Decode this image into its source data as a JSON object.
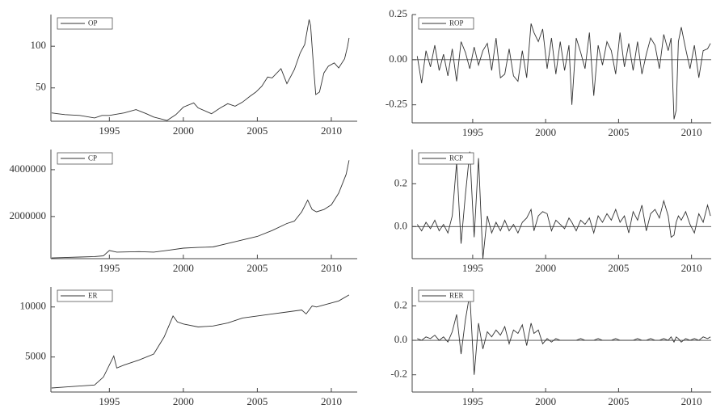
{
  "chart_data": [
    {
      "type": "line",
      "x": [
        1991.1,
        1991.5,
        1992,
        1993,
        1994,
        1994.5,
        1995,
        1996,
        1996.8,
        1997.5,
        1998,
        1998.9,
        1999.5,
        2000,
        2000.7,
        2001,
        2001.9,
        2002.5,
        2003,
        2003.5,
        2004,
        2004.5,
        2004.9,
        2005.3,
        2005.7,
        2006,
        2006.6,
        2007,
        2007.5,
        2007.9,
        2008.2,
        2008.5,
        2008.6,
        2008.8,
        2008.95,
        2009.2,
        2009.5,
        2009.8,
        2010.2,
        2010.5,
        2010.9,
        2011.1,
        2011.2
      ],
      "series": [
        {
          "name": "OP",
          "color": "#333333",
          "values": [
            20,
            19,
            18,
            17,
            14,
            17,
            17,
            20,
            24,
            19,
            15,
            11,
            18,
            27,
            32,
            26,
            19,
            26,
            31,
            28,
            33,
            40,
            45,
            52,
            63,
            62,
            73,
            55,
            72,
            92,
            102,
            132,
            125,
            75,
            42,
            45,
            68,
            76,
            80,
            74,
            85,
            100,
            110
          ]
        }
      ],
      "xlim": [
        1991.05,
        2011.75
      ],
      "xticks": [
        1995,
        2000,
        2005,
        2010
      ],
      "ylim": [
        10,
        138
      ],
      "yticks": [
        50,
        100
      ]
    },
    {
      "type": "line",
      "x": [
        1991.2,
        1991.5,
        1991.8,
        1992.1,
        1992.4,
        1992.7,
        1993,
        1993.3,
        1993.6,
        1993.9,
        1994.2,
        1994.5,
        1994.8,
        1995.1,
        1995.4,
        1995.7,
        1996,
        1996.3,
        1996.6,
        1996.9,
        1997.2,
        1997.5,
        1997.8,
        1998.1,
        1998.4,
        1998.7,
        1999,
        1999.2,
        1999.5,
        1999.8,
        2000.1,
        2000.4,
        2000.7,
        2001,
        2001.3,
        2001.6,
        2001.8,
        2002.1,
        2002.4,
        2002.7,
        2003,
        2003.3,
        2003.6,
        2003.9,
        2004.2,
        2004.5,
        2004.8,
        2005.1,
        2005.4,
        2005.7,
        2006,
        2006.3,
        2006.6,
        2006.9,
        2007.2,
        2007.5,
        2007.8,
        2008.1,
        2008.4,
        2008.6,
        2008.8,
        2008.95,
        2009.1,
        2009.3,
        2009.6,
        2009.9,
        2010.2,
        2010.5,
        2010.8,
        2011.1,
        2011.3
      ],
      "series": [
        {
          "name": "ROP",
          "color": "#333333",
          "values": [
            0.02,
            -0.13,
            0.05,
            -0.04,
            0.08,
            -0.06,
            0.03,
            -0.09,
            0.06,
            -0.12,
            0.1,
            0.04,
            -0.05,
            0.07,
            -0.03,
            0.05,
            0.09,
            -0.06,
            0.12,
            -0.1,
            -0.08,
            0.06,
            -0.09,
            -0.12,
            0.05,
            -0.1,
            0.2,
            0.15,
            0.1,
            0.17,
            -0.05,
            0.12,
            -0.08,
            0.1,
            -0.06,
            0.08,
            -0.25,
            0.12,
            0.04,
            -0.05,
            0.15,
            -0.2,
            0.08,
            -0.03,
            0.1,
            0.05,
            -0.08,
            0.15,
            -0.04,
            0.09,
            -0.06,
            0.1,
            -0.08,
            0.03,
            0.12,
            0.08,
            -0.05,
            0.14,
            0.05,
            0.12,
            -0.33,
            -0.28,
            0.1,
            0.18,
            0.06,
            -0.05,
            0.08,
            -0.1,
            0.05,
            0.06,
            0.09
          ]
        }
      ],
      "xlim": [
        1990.85,
        2011.35
      ],
      "xticks": [
        1995,
        2000,
        2005,
        2010
      ],
      "ylim": [
        -0.35,
        0.25
      ],
      "yticks": [
        0.25,
        {
          "value": 0,
          "label": "0.00"
        },
        -0.25
      ]
    },
    {
      "type": "line",
      "x": [
        1991.1,
        1992,
        1993,
        1994,
        1994.6,
        1995,
        1995.5,
        1997,
        1998,
        1999,
        2000,
        2001,
        2002,
        2003,
        2004,
        2005,
        2006,
        2007,
        2007.5,
        2008,
        2008.4,
        2008.7,
        2009,
        2009.5,
        2010,
        2010.5,
        2011,
        2011.2
      ],
      "series": [
        {
          "name": "CP",
          "color": "#333333",
          "values": [
            230000,
            250000,
            270000,
            290000,
            320000,
            550000,
            480000,
            500000,
            480000,
            560000,
            650000,
            680000,
            700000,
            850000,
            1000000,
            1150000,
            1400000,
            1700000,
            1800000,
            2200000,
            2700000,
            2300000,
            2200000,
            2300000,
            2500000,
            3000000,
            3800000,
            4400000
          ]
        }
      ],
      "xlim": [
        1991.05,
        2011.75
      ],
      "xticks": [
        1995,
        2000,
        2005,
        2010
      ],
      "ylim": [
        200000,
        4860000
      ],
      "yticks": [
        2000000,
        4000000
      ]
    },
    {
      "type": "line",
      "x": [
        1991.2,
        1991.5,
        1991.8,
        1992.1,
        1992.4,
        1992.7,
        1993,
        1993.3,
        1993.6,
        1993.9,
        1994.2,
        1994.5,
        1994.8,
        1995.1,
        1995.4,
        1995.7,
        1996,
        1996.3,
        1996.6,
        1996.9,
        1997.2,
        1997.5,
        1997.8,
        1998.1,
        1998.4,
        1998.7,
        1999,
        1999.2,
        1999.5,
        1999.8,
        2000.1,
        2000.4,
        2000.7,
        2001,
        2001.3,
        2001.6,
        2001.8,
        2002.1,
        2002.4,
        2002.7,
        2003,
        2003.3,
        2003.6,
        2003.9,
        2004.2,
        2004.5,
        2004.8,
        2005.1,
        2005.4,
        2005.7,
        2006,
        2006.3,
        2006.6,
        2006.9,
        2007.2,
        2007.5,
        2007.8,
        2008.1,
        2008.4,
        2008.6,
        2008.8,
        2008.95,
        2009.1,
        2009.3,
        2009.6,
        2009.9,
        2010.2,
        2010.5,
        2010.8,
        2011.1,
        2011.3
      ],
      "series": [
        {
          "name": "RCP",
          "color": "#333333",
          "values": [
            0.01,
            -0.02,
            0.02,
            -0.01,
            0.03,
            -0.02,
            0.01,
            -0.03,
            0.05,
            0.3,
            -0.08,
            0.15,
            0.35,
            -0.05,
            0.32,
            -0.15,
            0.05,
            -0.03,
            0.02,
            -0.02,
            0.03,
            -0.02,
            0.01,
            -0.03,
            0.02,
            0.04,
            0.08,
            -0.02,
            0.05,
            0.07,
            0.06,
            -0.02,
            0.03,
            0.01,
            -0.01,
            0.04,
            0.02,
            -0.02,
            0.03,
            0.01,
            0.04,
            -0.03,
            0.05,
            0.02,
            0.06,
            0.03,
            0.08,
            0.02,
            0.05,
            -0.03,
            0.07,
            0.03,
            0.1,
            -0.02,
            0.06,
            0.08,
            0.04,
            0.12,
            0.05,
            -0.05,
            -0.04,
            0.02,
            0.05,
            0.03,
            0.07,
            0.01,
            -0.03,
            0.06,
            0.02,
            0.1,
            0.05
          ]
        }
      ],
      "xlim": [
        1990.85,
        2011.35
      ],
      "xticks": [
        1995,
        2000,
        2005,
        2010
      ],
      "ylim": [
        -0.15,
        0.36
      ],
      "yticks": [
        0.2,
        {
          "value": 0,
          "label": "0.0"
        }
      ]
    },
    {
      "type": "line",
      "x": [
        1991.1,
        1992,
        1993,
        1994,
        1994.6,
        1995.3,
        1995.5,
        1996,
        1997,
        1998,
        1998.7,
        1999.3,
        1999.6,
        2000,
        2001,
        2002,
        2003,
        2004,
        2005,
        2006,
        2007,
        2008,
        2008.3,
        2008.7,
        2009,
        2010,
        2010.5,
        2011.2
      ],
      "series": [
        {
          "name": "ER",
          "color": "#333333",
          "values": [
            1900,
            2000,
            2100,
            2200,
            3000,
            5100,
            3900,
            4200,
            4700,
            5300,
            7000,
            9100,
            8500,
            8300,
            8000,
            8100,
            8400,
            8900,
            9100,
            9300,
            9500,
            9700,
            9300,
            10100,
            10000,
            10400,
            10600,
            11200
          ]
        }
      ],
      "xlim": [
        1991.05,
        2011.75
      ],
      "xticks": [
        1995,
        2000,
        2005,
        2010
      ],
      "ylim": [
        1500,
        12000
      ],
      "yticks": [
        5000,
        10000
      ]
    },
    {
      "type": "line",
      "x": [
        1991.2,
        1991.5,
        1991.8,
        1992.1,
        1992.4,
        1992.7,
        1993,
        1993.3,
        1993.6,
        1993.9,
        1994.2,
        1994.5,
        1994.8,
        1995.1,
        1995.4,
        1995.7,
        1996,
        1996.3,
        1996.6,
        1996.9,
        1997.2,
        1997.5,
        1997.8,
        1998.1,
        1998.4,
        1998.7,
        1999,
        1999.2,
        1999.5,
        1999.8,
        2000.1,
        2000.4,
        2000.7,
        2001,
        2001.3,
        2001.6,
        2001.8,
        2002.1,
        2002.4,
        2002.7,
        2003,
        2003.3,
        2003.6,
        2003.9,
        2004.2,
        2004.5,
        2004.8,
        2005.1,
        2005.4,
        2005.7,
        2006,
        2006.3,
        2006.6,
        2006.9,
        2007.2,
        2007.5,
        2007.8,
        2008.1,
        2008.4,
        2008.6,
        2008.8,
        2008.95,
        2009.1,
        2009.3,
        2009.6,
        2009.9,
        2010.2,
        2010.5,
        2010.8,
        2011.1,
        2011.3
      ],
      "series": [
        {
          "name": "RER",
          "color": "#333333",
          "values": [
            0.01,
            0,
            0.02,
            0.01,
            0.03,
            0,
            0.02,
            -0.01,
            0.05,
            0.15,
            -0.08,
            0.12,
            0.27,
            -0.2,
            0.1,
            -0.05,
            0.05,
            0.02,
            0.06,
            0.03,
            0.08,
            -0.02,
            0.06,
            0.04,
            0.09,
            -0.03,
            0.1,
            0.04,
            0.06,
            -0.02,
            0.01,
            -0.01,
            0.01,
            0,
            0,
            0,
            0,
            0,
            0.01,
            0,
            0,
            0,
            0.01,
            0,
            0,
            0,
            0.01,
            0,
            0,
            0,
            0,
            0.01,
            0,
            0,
            0.01,
            0,
            0,
            0.01,
            0,
            0.02,
            -0.01,
            0.02,
            0.01,
            -0.01,
            0.01,
            0,
            0.01,
            0,
            0.02,
            0.01,
            0.02
          ]
        }
      ],
      "xlim": [
        1990.85,
        2011.35
      ],
      "xticks": [
        1995,
        2000,
        2005,
        2010
      ],
      "ylim": [
        -0.3,
        0.31
      ],
      "yticks": [
        0.2,
        {
          "value": 0,
          "label": "0.0"
        },
        -0.2
      ]
    }
  ]
}
